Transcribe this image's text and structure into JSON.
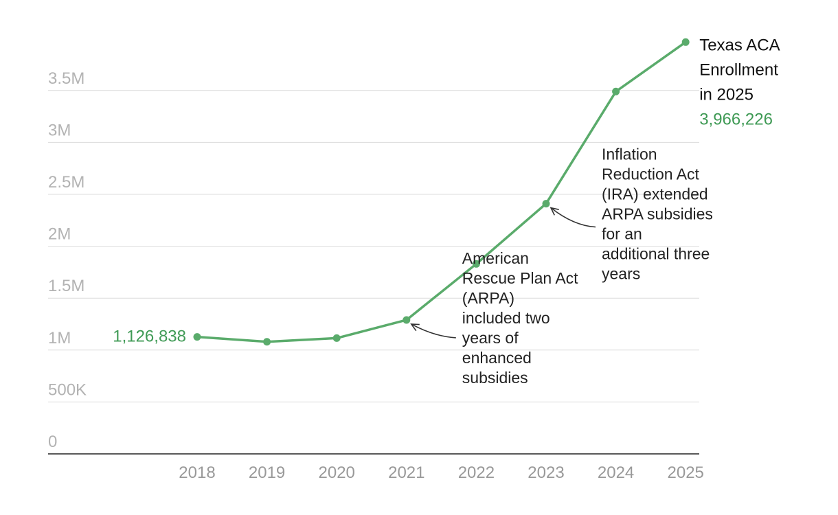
{
  "colors": {
    "series": "#5aab6b",
    "label": "#3f9a55"
  },
  "chart_data": {
    "type": "line",
    "x": [
      "2018",
      "2019",
      "2020",
      "2021",
      "2022",
      "2023",
      "2024",
      "2025"
    ],
    "series": [
      {
        "values": [
          1126838,
          1080000,
          1115000,
          1290000,
          1830000,
          2410000,
          3490000,
          3966226
        ]
      }
    ],
    "ylim": [
      0,
      4000000
    ],
    "yticks": [
      {
        "value": 0,
        "label": "0"
      },
      {
        "value": 500000,
        "label": "500K"
      },
      {
        "value": 1000000,
        "label": "1M"
      },
      {
        "value": 1500000,
        "label": "1.5M"
      },
      {
        "value": 2000000,
        "label": "2M"
      },
      {
        "value": 2500000,
        "label": "2.5M"
      },
      {
        "value": 3000000,
        "label": "3M"
      },
      {
        "value": 3500000,
        "label": "3.5M"
      }
    ],
    "grid": true,
    "start_label": "1,126,838",
    "end_label": {
      "title_lines": [
        "Texas ACA",
        "Enrollment",
        "in 2025"
      ],
      "value": "3,966,226"
    },
    "annotations": [
      {
        "x": "2021",
        "lines": [
          "American",
          "Rescue Plan Act",
          "(ARPA)",
          "included two",
          "years of",
          "enhanced",
          "subsidies"
        ]
      },
      {
        "x": "2023",
        "lines": [
          "Inflation",
          "Reduction Act",
          "(IRA) extended",
          "ARPA subsidies",
          "for an",
          "additional three",
          "years"
        ]
      }
    ]
  }
}
